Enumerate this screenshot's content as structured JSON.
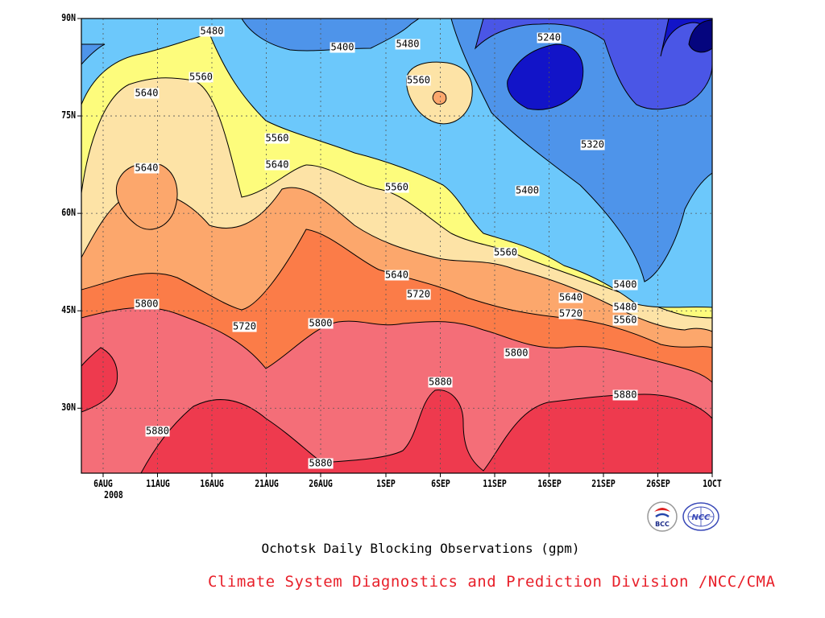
{
  "chart_data": {
    "type": "heatmap",
    "title": "Ochotsk Daily Blocking Observations (gpm)",
    "y_tick_labels": [
      "90N",
      "75N",
      "60N",
      "45N",
      "30N"
    ],
    "y_ticks": [
      90,
      75,
      60,
      45,
      30
    ],
    "ylim": [
      20,
      90
    ],
    "x_tick_labels": [
      "6AUG",
      "11AUG",
      "16AUG",
      "21AUG",
      "26AUG",
      "1SEP",
      "6SEP",
      "11SEP",
      "16SEP",
      "21SEP",
      "26SEP",
      "1OCT"
    ],
    "x_year_label": "2008",
    "x_ticks_days_from_aug1": [
      5,
      10,
      15,
      20,
      25,
      31,
      36,
      41,
      46,
      51,
      56,
      61
    ],
    "xlim": [
      "2008-08-04",
      "2008-10-01"
    ],
    "grid": true,
    "contour_levels": [
      5240,
      5320,
      5400,
      5480,
      5560,
      5640,
      5720,
      5800,
      5880
    ],
    "fill_colors": {
      "5880": "#ee3a4e",
      "5800": "#f46e78",
      "5720": "#fb7c48",
      "5640": "#fca76c",
      "5560": "#fde3a6",
      "5480": "#fdfc7c",
      "5400": "#6cc8fb",
      "5320": "#4e94ea",
      "5240": "#4a56e6",
      "5160": "#1214c8",
      "5080": "#05057e"
    },
    "contour_labels": [
      {
        "text": "5480",
        "date": "2008-08-16",
        "lat": 88
      },
      {
        "text": "5400",
        "date": "2008-08-28",
        "lat": 85.5
      },
      {
        "text": "5480",
        "date": "2008-09-03",
        "lat": 86
      },
      {
        "text": "5240",
        "date": "2008-09-16",
        "lat": 87
      },
      {
        "text": "5560",
        "date": "2008-08-15",
        "lat": 81
      },
      {
        "text": "5560",
        "date": "2008-09-04",
        "lat": 80.5
      },
      {
        "text": "5640",
        "date": "2008-08-10",
        "lat": 78.5
      },
      {
        "text": "5560",
        "date": "2008-08-22",
        "lat": 71.5
      },
      {
        "text": "5320",
        "date": "2008-09-20",
        "lat": 70.5
      },
      {
        "text": "5640",
        "date": "2008-08-10",
        "lat": 67
      },
      {
        "text": "5640",
        "date": "2008-08-22",
        "lat": 67.5
      },
      {
        "text": "5400",
        "date": "2008-09-14",
        "lat": 63.5
      },
      {
        "text": "5560",
        "date": "2008-09-02",
        "lat": 64
      },
      {
        "text": "5560",
        "date": "2008-09-12",
        "lat": 54
      },
      {
        "text": "5640",
        "date": "2008-09-02",
        "lat": 50.5
      },
      {
        "text": "5400",
        "date": "2008-09-23",
        "lat": 49
      },
      {
        "text": "5720",
        "date": "2008-09-04",
        "lat": 47.5
      },
      {
        "text": "5640",
        "date": "2008-09-18",
        "lat": 47
      },
      {
        "text": "5800",
        "date": "2008-08-10",
        "lat": 46
      },
      {
        "text": "5480",
        "date": "2008-09-23",
        "lat": 45.5
      },
      {
        "text": "5720",
        "date": "2008-09-18",
        "lat": 44.5
      },
      {
        "text": "5560",
        "date": "2008-09-23",
        "lat": 43.5
      },
      {
        "text": "5720",
        "date": "2008-08-19",
        "lat": 42.5
      },
      {
        "text": "5800",
        "date": "2008-08-26",
        "lat": 43
      },
      {
        "text": "5800",
        "date": "2008-09-13",
        "lat": 38.5
      },
      {
        "text": "5880",
        "date": "2008-09-06",
        "lat": 34
      },
      {
        "text": "5880",
        "date": "2008-09-23",
        "lat": 32
      },
      {
        "text": "5880",
        "date": "2008-08-11",
        "lat": 26.5
      },
      {
        "text": "5880",
        "date": "2008-08-26",
        "lat": 21.5
      }
    ]
  },
  "credit": "Climate System Diagnostics and Prediction Division /NCC/CMA",
  "logos": [
    {
      "name": "BCC",
      "text": "BCC"
    },
    {
      "name": "NCC",
      "text": "NCC"
    }
  ]
}
